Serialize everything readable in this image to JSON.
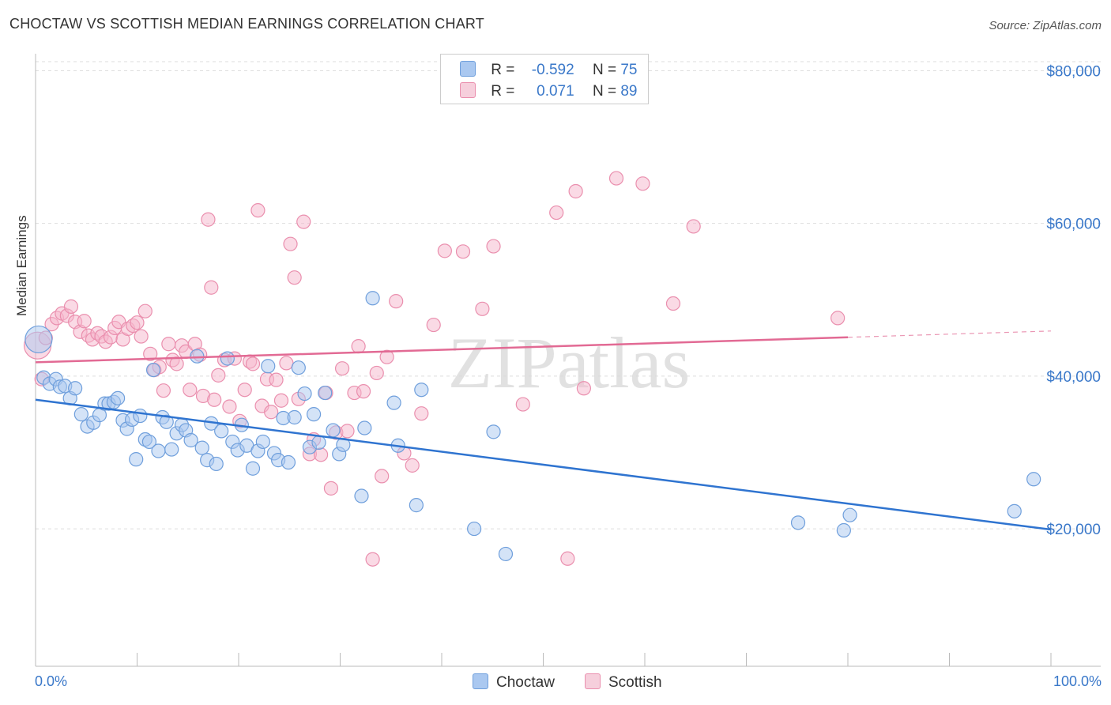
{
  "header": {
    "title": "CHOCTAW VS SCOTTISH MEDIAN EARNINGS CORRELATION CHART",
    "source": "Source: ZipAtlas.com"
  },
  "watermark": "ZIPatlas",
  "legend": {
    "rows": [
      {
        "r_label": "R =",
        "r_value": "-0.592",
        "n_label": "N =",
        "n_value": "75"
      },
      {
        "r_label": "R =",
        "r_value": "0.071",
        "n_label": "N =",
        "n_value": "89"
      }
    ]
  },
  "bottom_legend": [
    "Choctaw",
    "Scottish"
  ],
  "colors": {
    "choctaw_fill": "#aac8f0",
    "choctaw_stroke": "#6f9fdc",
    "choctaw_line": "#2f74d0",
    "scottish_fill": "#f6b6cc",
    "scottish_stroke": "#ea8fae",
    "scottish_line": "#e26a94",
    "axis_text": "#3a78c9",
    "grid": "#dddddd"
  },
  "chart_data": {
    "type": "scatter",
    "title": "CHOCTAW VS SCOTTISH MEDIAN EARNINGS CORRELATION CHART",
    "xlabel": "",
    "ylabel": "Median Earnings",
    "xlim": [
      0,
      100
    ],
    "ylim": [
      2000,
      82000
    ],
    "x_tick_labels": [
      "0.0%",
      "100.0%"
    ],
    "y_ticks": [
      {
        "value": 20000,
        "label": "$20,000"
      },
      {
        "value": 40000,
        "label": "$40,000"
      },
      {
        "value": 60000,
        "label": "$60,000"
      },
      {
        "value": 80000,
        "label": "$80,000"
      }
    ],
    "series": [
      {
        "name": "Choctaw",
        "R": -0.592,
        "N": 75,
        "trend": {
          "x": [
            0,
            100
          ],
          "y": [
            36900,
            19900
          ],
          "dashed_from": null
        },
        "points": [
          {
            "x": 0.3,
            "y": 44800,
            "big": true
          },
          {
            "x": 0.8,
            "y": 39800
          },
          {
            "x": 1.4,
            "y": 39000
          },
          {
            "x": 2.0,
            "y": 39600
          },
          {
            "x": 2.4,
            "y": 38600
          },
          {
            "x": 2.9,
            "y": 38700
          },
          {
            "x": 3.4,
            "y": 37100
          },
          {
            "x": 3.9,
            "y": 38400
          },
          {
            "x": 4.5,
            "y": 35000
          },
          {
            "x": 5.1,
            "y": 33400
          },
          {
            "x": 5.7,
            "y": 33900
          },
          {
            "x": 6.3,
            "y": 34900
          },
          {
            "x": 6.8,
            "y": 36400
          },
          {
            "x": 7.2,
            "y": 36400
          },
          {
            "x": 7.7,
            "y": 36600
          },
          {
            "x": 8.1,
            "y": 37100
          },
          {
            "x": 8.6,
            "y": 34200
          },
          {
            "x": 9.0,
            "y": 33100
          },
          {
            "x": 9.5,
            "y": 34300
          },
          {
            "x": 9.9,
            "y": 29100
          },
          {
            "x": 10.3,
            "y": 34800
          },
          {
            "x": 10.8,
            "y": 31700
          },
          {
            "x": 11.2,
            "y": 31400
          },
          {
            "x": 11.6,
            "y": 40800
          },
          {
            "x": 12.1,
            "y": 30200
          },
          {
            "x": 12.5,
            "y": 34600
          },
          {
            "x": 12.9,
            "y": 34000
          },
          {
            "x": 13.4,
            "y": 30400
          },
          {
            "x": 13.9,
            "y": 32500
          },
          {
            "x": 14.4,
            "y": 33600
          },
          {
            "x": 14.8,
            "y": 32900
          },
          {
            "x": 15.3,
            "y": 31600
          },
          {
            "x": 15.9,
            "y": 42600
          },
          {
            "x": 16.4,
            "y": 30600
          },
          {
            "x": 16.9,
            "y": 29000
          },
          {
            "x": 17.3,
            "y": 33800
          },
          {
            "x": 17.8,
            "y": 28500
          },
          {
            "x": 18.3,
            "y": 32800
          },
          {
            "x": 18.9,
            "y": 42300
          },
          {
            "x": 19.4,
            "y": 31400
          },
          {
            "x": 19.9,
            "y": 30300
          },
          {
            "x": 20.3,
            "y": 33600
          },
          {
            "x": 20.8,
            "y": 30900
          },
          {
            "x": 21.4,
            "y": 27900
          },
          {
            "x": 21.9,
            "y": 30200
          },
          {
            "x": 22.4,
            "y": 31400
          },
          {
            "x": 22.9,
            "y": 41300
          },
          {
            "x": 23.5,
            "y": 29900
          },
          {
            "x": 23.9,
            "y": 29000
          },
          {
            "x": 24.4,
            "y": 34500
          },
          {
            "x": 24.9,
            "y": 28700
          },
          {
            "x": 25.5,
            "y": 34600
          },
          {
            "x": 25.9,
            "y": 41100
          },
          {
            "x": 26.5,
            "y": 37700
          },
          {
            "x": 27.0,
            "y": 30700
          },
          {
            "x": 27.4,
            "y": 35000
          },
          {
            "x": 27.9,
            "y": 31300
          },
          {
            "x": 28.5,
            "y": 37800
          },
          {
            "x": 29.3,
            "y": 32900
          },
          {
            "x": 29.9,
            "y": 29800
          },
          {
            "x": 30.3,
            "y": 31000
          },
          {
            "x": 32.1,
            "y": 24300
          },
          {
            "x": 32.4,
            "y": 33200
          },
          {
            "x": 33.2,
            "y": 50200
          },
          {
            "x": 35.3,
            "y": 36500
          },
          {
            "x": 35.7,
            "y": 30900
          },
          {
            "x": 37.5,
            "y": 23100
          },
          {
            "x": 38.0,
            "y": 38200
          },
          {
            "x": 43.2,
            "y": 20000
          },
          {
            "x": 45.1,
            "y": 32700
          },
          {
            "x": 46.3,
            "y": 16700
          },
          {
            "x": 75.1,
            "y": 20800
          },
          {
            "x": 79.6,
            "y": 19800
          },
          {
            "x": 80.2,
            "y": 21800
          },
          {
            "x": 96.4,
            "y": 22300
          },
          {
            "x": 98.3,
            "y": 26500
          }
        ]
      },
      {
        "name": "Scottish",
        "R": 0.071,
        "N": 89,
        "trend": {
          "x": [
            0,
            100
          ],
          "y": [
            41800,
            45900
          ],
          "dashed_from": 80
        },
        "points": [
          {
            "x": 0.2,
            "y": 44000,
            "big": true
          },
          {
            "x": 0.6,
            "y": 39600
          },
          {
            "x": 1.0,
            "y": 45000
          },
          {
            "x": 1.6,
            "y": 46800
          },
          {
            "x": 2.1,
            "y": 47600
          },
          {
            "x": 2.6,
            "y": 48200
          },
          {
            "x": 3.1,
            "y": 47900
          },
          {
            "x": 3.5,
            "y": 49100
          },
          {
            "x": 3.9,
            "y": 47100
          },
          {
            "x": 4.4,
            "y": 45800
          },
          {
            "x": 4.8,
            "y": 47200
          },
          {
            "x": 5.2,
            "y": 45300
          },
          {
            "x": 5.6,
            "y": 44800
          },
          {
            "x": 6.1,
            "y": 45600
          },
          {
            "x": 6.5,
            "y": 45200
          },
          {
            "x": 6.9,
            "y": 44500
          },
          {
            "x": 7.4,
            "y": 45100
          },
          {
            "x": 7.8,
            "y": 46300
          },
          {
            "x": 8.2,
            "y": 47100
          },
          {
            "x": 8.6,
            "y": 44800
          },
          {
            "x": 9.1,
            "y": 46200
          },
          {
            "x": 9.6,
            "y": 46600
          },
          {
            "x": 10.0,
            "y": 47000
          },
          {
            "x": 10.4,
            "y": 45200
          },
          {
            "x": 10.8,
            "y": 48500
          },
          {
            "x": 11.3,
            "y": 42900
          },
          {
            "x": 11.7,
            "y": 40800
          },
          {
            "x": 12.2,
            "y": 41200
          },
          {
            "x": 12.6,
            "y": 38100
          },
          {
            "x": 13.1,
            "y": 44200
          },
          {
            "x": 13.5,
            "y": 42100
          },
          {
            "x": 13.9,
            "y": 41600
          },
          {
            "x": 14.4,
            "y": 44000
          },
          {
            "x": 14.8,
            "y": 43200
          },
          {
            "x": 15.2,
            "y": 38200
          },
          {
            "x": 15.7,
            "y": 44200
          },
          {
            "x": 16.2,
            "y": 42800
          },
          {
            "x": 16.5,
            "y": 37400
          },
          {
            "x": 17.0,
            "y": 60500
          },
          {
            "x": 17.3,
            "y": 51600
          },
          {
            "x": 17.6,
            "y": 36900
          },
          {
            "x": 18.0,
            "y": 40100
          },
          {
            "x": 18.6,
            "y": 42100
          },
          {
            "x": 19.1,
            "y": 36000
          },
          {
            "x": 19.6,
            "y": 42300
          },
          {
            "x": 20.1,
            "y": 34100
          },
          {
            "x": 20.6,
            "y": 38200
          },
          {
            "x": 21.1,
            "y": 41900
          },
          {
            "x": 21.4,
            "y": 41600
          },
          {
            "x": 21.9,
            "y": 61700
          },
          {
            "x": 22.3,
            "y": 36100
          },
          {
            "x": 22.8,
            "y": 39600
          },
          {
            "x": 23.2,
            "y": 35300
          },
          {
            "x": 23.7,
            "y": 39500
          },
          {
            "x": 24.2,
            "y": 36800
          },
          {
            "x": 24.7,
            "y": 41700
          },
          {
            "x": 25.1,
            "y": 57300
          },
          {
            "x": 25.5,
            "y": 52900
          },
          {
            "x": 25.9,
            "y": 37000
          },
          {
            "x": 26.4,
            "y": 60200
          },
          {
            "x": 27.0,
            "y": 29800
          },
          {
            "x": 27.4,
            "y": 31700
          },
          {
            "x": 28.1,
            "y": 29700
          },
          {
            "x": 28.6,
            "y": 37800
          },
          {
            "x": 29.1,
            "y": 25300
          },
          {
            "x": 29.6,
            "y": 32600
          },
          {
            "x": 30.2,
            "y": 41000
          },
          {
            "x": 30.7,
            "y": 32800
          },
          {
            "x": 31.4,
            "y": 37800
          },
          {
            "x": 31.8,
            "y": 43900
          },
          {
            "x": 32.3,
            "y": 38000
          },
          {
            "x": 33.2,
            "y": 16000
          },
          {
            "x": 33.6,
            "y": 40400
          },
          {
            "x": 34.1,
            "y": 26900
          },
          {
            "x": 34.6,
            "y": 42500
          },
          {
            "x": 35.5,
            "y": 49800
          },
          {
            "x": 36.3,
            "y": 29900
          },
          {
            "x": 37.1,
            "y": 28300
          },
          {
            "x": 38.0,
            "y": 35100
          },
          {
            "x": 39.2,
            "y": 46700
          },
          {
            "x": 40.3,
            "y": 56400
          },
          {
            "x": 42.1,
            "y": 56300
          },
          {
            "x": 44.0,
            "y": 48800
          },
          {
            "x": 45.1,
            "y": 57000
          },
          {
            "x": 48.0,
            "y": 36300
          },
          {
            "x": 51.3,
            "y": 61400
          },
          {
            "x": 52.4,
            "y": 16100
          },
          {
            "x": 53.2,
            "y": 64200
          },
          {
            "x": 54.0,
            "y": 38400
          },
          {
            "x": 57.2,
            "y": 65900
          },
          {
            "x": 59.8,
            "y": 65200
          },
          {
            "x": 62.8,
            "y": 49500
          },
          {
            "x": 64.8,
            "y": 59600
          },
          {
            "x": 79.0,
            "y": 47600
          }
        ]
      }
    ]
  }
}
